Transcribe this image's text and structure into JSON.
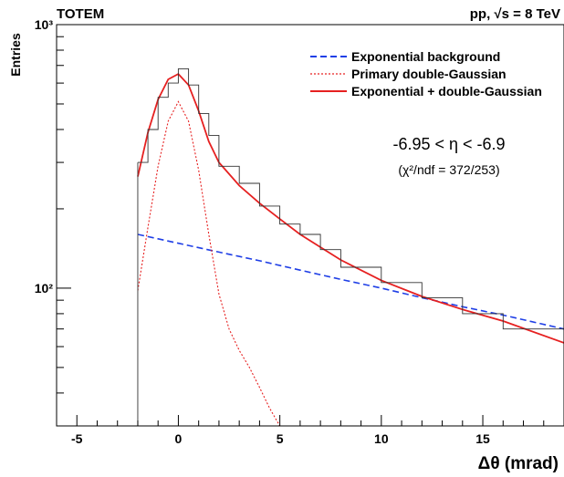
{
  "header": {
    "left_label": "TOTEM",
    "right_label": "pp, √s = 8 TeV"
  },
  "chart_data": {
    "type": "line",
    "ylabel": "Entries",
    "xlabel": "Δθ (mrad)",
    "xlim": [
      -6,
      19
    ],
    "ylim": [
      30,
      1000
    ],
    "y_scale": "log",
    "x_ticks": [
      "-5",
      "0",
      "5",
      "10",
      "15"
    ],
    "y_ticks": [
      "10²",
      "10³"
    ],
    "legend": [
      {
        "label": "Exponential background",
        "color": "#1f3fe6",
        "style": "dashed"
      },
      {
        "label": "Primary double-Gaussian",
        "color": "#e62020",
        "style": "dotted"
      },
      {
        "label": "Exponential + double-Gaussian",
        "color": "#e62020",
        "style": "solid"
      }
    ],
    "annotation_eta": "-6.95 < η < -6.9",
    "annotation_chi2": "(χ²/ndf = 372/253)",
    "series": [
      {
        "name": "Exponential background",
        "x": [
          -2,
          0,
          2,
          4,
          6,
          8,
          10,
          12,
          14,
          16,
          19
        ],
        "values": [
          160,
          148,
          137,
          127,
          117,
          108,
          100,
          92,
          85,
          79,
          70
        ]
      },
      {
        "name": "Primary double-Gaussian",
        "x": [
          -2,
          -1.5,
          -1,
          -0.5,
          0,
          0.5,
          1,
          1.5,
          2,
          2.5,
          3,
          3.5,
          4,
          4.5,
          5
        ],
        "values": [
          98,
          170,
          290,
          430,
          510,
          430,
          280,
          160,
          95,
          70,
          58,
          50,
          42,
          35,
          30
        ]
      },
      {
        "name": "Exponential + double-Gaussian",
        "x": [
          -2,
          -1.5,
          -1,
          -0.5,
          0,
          0.5,
          1,
          1.5,
          2,
          3,
          4,
          5,
          6,
          7,
          8,
          10,
          12,
          14,
          16,
          19
        ],
        "values": [
          265,
          390,
          520,
          620,
          650,
          590,
          470,
          360,
          300,
          245,
          210,
          183,
          160,
          143,
          128,
          107,
          93,
          83,
          75,
          62
        ]
      },
      {
        "name": "data",
        "x": [
          -2,
          -1.5,
          -1,
          -0.5,
          0,
          0.5,
          1,
          1.5,
          2,
          3,
          4,
          5,
          6,
          7,
          8,
          10,
          12,
          14,
          16,
          19
        ],
        "values": [
          300,
          400,
          530,
          600,
          680,
          590,
          460,
          380,
          290,
          250,
          205,
          175,
          160,
          140,
          120,
          105,
          92,
          80,
          70,
          60
        ]
      }
    ]
  }
}
